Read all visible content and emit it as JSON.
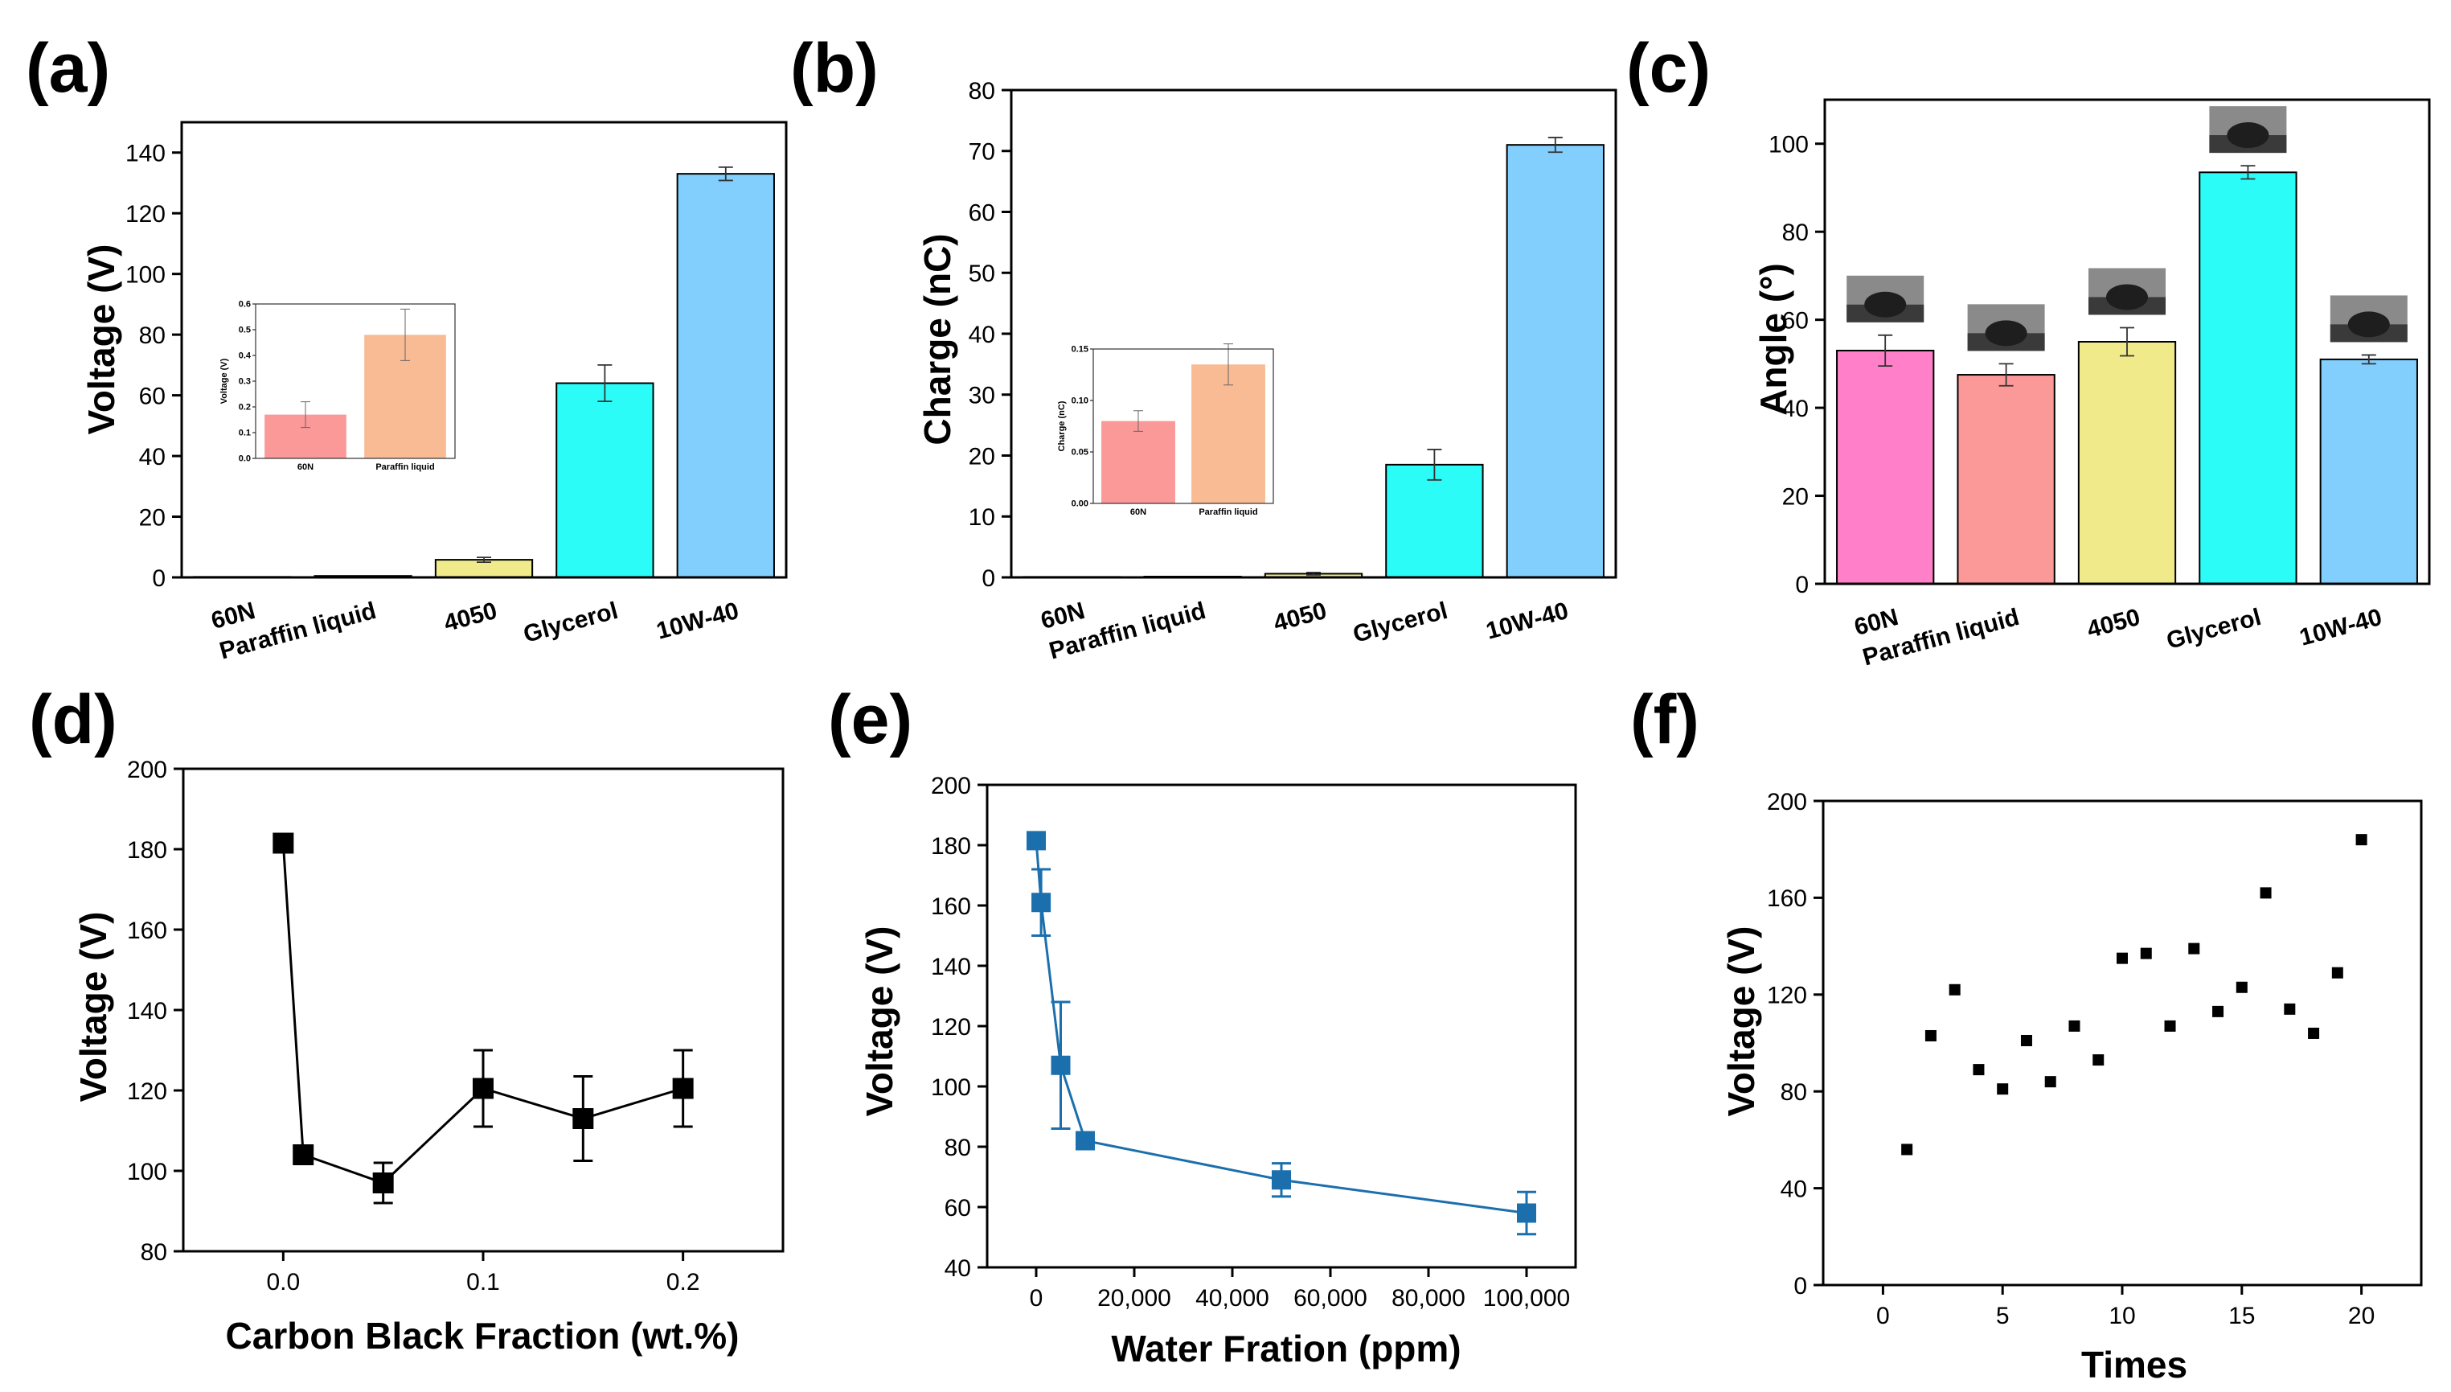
{
  "colors": {
    "60N": "#ff7fc8",
    "Paraffin liquid": "#fb9898",
    "4050": "#f0ea8a",
    "Glycerol": "#2bfcf8",
    "10W-40": "#82cefd",
    "inset_60N": "#fb9898",
    "inset_Paraffin liquid": "#f8bb94",
    "series_d": "#000000",
    "series_e": "#1b6fad",
    "series_f": "#000000"
  },
  "chart_data": [
    {
      "panel": "(a)",
      "type": "bar",
      "categories": [
        "60N",
        "Paraffin liquid",
        "4050",
        "Glycerol",
        "10W-40"
      ],
      "values": [
        0.17,
        0.48,
        5.8,
        64,
        133
      ],
      "errors": [
        0.05,
        0.1,
        0.8,
        6,
        2.2
      ],
      "ylabel": "Voltage (V)",
      "ylim": [
        0,
        150
      ],
      "yticks": [
        "0",
        "20",
        "40",
        "60",
        "80",
        "100",
        "120",
        "140"
      ],
      "inset": {
        "categories": [
          "60N",
          "Paraffin liquid"
        ],
        "values": [
          0.17,
          0.48
        ],
        "errors": [
          0.05,
          0.1
        ],
        "ylabel": "Voltage (V)",
        "ylim": [
          0,
          0.6
        ],
        "yticks": [
          "0.0",
          "0.1",
          "0.2",
          "0.3",
          "0.4",
          "0.5",
          "0.6"
        ]
      }
    },
    {
      "panel": "(b)",
      "type": "bar",
      "categories": [
        "60N",
        "Paraffin liquid",
        "4050",
        "Glycerol",
        "10W-40"
      ],
      "values": [
        0.08,
        0.13,
        0.6,
        18.5,
        71
      ],
      "errors": [
        0.01,
        0.02,
        0.2,
        2.5,
        1.2
      ],
      "ylabel": "Charge (nC)",
      "ylim": [
        0,
        80
      ],
      "yticks": [
        "0",
        "10",
        "20",
        "30",
        "40",
        "50",
        "60",
        "70",
        "80"
      ],
      "inset": {
        "categories": [
          "60N",
          "Paraffin liquid"
        ],
        "values": [
          0.08,
          0.135
        ],
        "errors": [
          0.01,
          0.02
        ],
        "ylabel": "Charge (nC)",
        "ylim": [
          0,
          0.15
        ],
        "yticks": [
          "0.00",
          "0.05",
          "0.10",
          "0.15"
        ]
      }
    },
    {
      "panel": "(c)",
      "type": "bar",
      "categories": [
        "60N",
        "Paraffin liquid",
        "4050",
        "Glycerol",
        "10W-40"
      ],
      "values": [
        53,
        47.5,
        55,
        93.5,
        51
      ],
      "errors": [
        3.5,
        2.5,
        3.2,
        1.5,
        1.0
      ],
      "ylabel": "Angle (°)",
      "ylim": [
        0,
        110
      ],
      "yticks": [
        "0",
        "20",
        "40",
        "60",
        "80",
        "100"
      ]
    },
    {
      "panel": "(d)",
      "type": "line",
      "x": [
        0,
        0.01,
        0.05,
        0.1,
        0.15,
        0.2
      ],
      "y": [
        181.5,
        104,
        97,
        120.5,
        113,
        120.5
      ],
      "errors": [
        0,
        1.5,
        5,
        9.5,
        10.5,
        9.5
      ],
      "xlabel": "Carbon Black Fraction (wt.%)",
      "ylabel": "Voltage (V)",
      "xlim": [
        -0.05,
        0.25
      ],
      "ylim": [
        80,
        200
      ],
      "xticks": [
        "0.0",
        "0.1",
        "0.2"
      ],
      "yticks": [
        "80",
        "100",
        "120",
        "140",
        "160",
        "180",
        "200"
      ]
    },
    {
      "panel": "(e)",
      "type": "line",
      "x": [
        0,
        1000,
        5000,
        10000,
        50000,
        100000
      ],
      "y": [
        181.5,
        161,
        107,
        82,
        69,
        58
      ],
      "errors": [
        1.5,
        11,
        21,
        2.5,
        5.5,
        7
      ],
      "xlabel": "Water Fration (ppm)",
      "ylabel": "Voltage (V)",
      "xlim": [
        -10000,
        110000
      ],
      "ylim": [
        40,
        200
      ],
      "xticks": [
        "0",
        "20,000",
        "40,000",
        "60,000",
        "80,000",
        "100,000"
      ],
      "yticks": [
        "40",
        "60",
        "80",
        "100",
        "120",
        "140",
        "160",
        "180",
        "200"
      ]
    },
    {
      "panel": "(f)",
      "type": "scatter",
      "x": [
        1,
        2,
        3,
        4,
        5,
        6,
        7,
        8,
        9,
        10,
        11,
        12,
        13,
        14,
        15,
        16,
        17,
        18,
        19,
        20
      ],
      "y": [
        56,
        103,
        122,
        89,
        81,
        101,
        84,
        107,
        93,
        135,
        137,
        107,
        139,
        113,
        123,
        162,
        114,
        104,
        129,
        184
      ],
      "xlabel": "Times",
      "ylabel": "Voltage (V)",
      "xlim": [
        -2.5,
        22.5
      ],
      "ylim": [
        0,
        200
      ],
      "xticks": [
        "0",
        "5",
        "10",
        "15",
        "20"
      ],
      "yticks": [
        "0",
        "40",
        "80",
        "120",
        "160",
        "200"
      ]
    }
  ]
}
